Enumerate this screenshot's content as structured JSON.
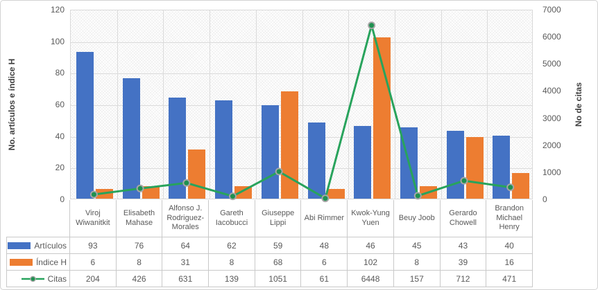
{
  "chart_data": {
    "type": "combo-bar-line",
    "title": "",
    "categories": [
      "Viroj Wiwanitkit",
      "Elisabeth Mahase",
      "Alfonso J. Rodriguez-Morales",
      "Gareth Iacobucci",
      "Giuseppe Lippi",
      "Abi Rimmer",
      "Kwok-Yung Yuen",
      "Beuy Joob",
      "Gerardo Chowell",
      "Brandon Michael Henry"
    ],
    "series": [
      {
        "name": "Artículos",
        "type": "bar",
        "axis": "left",
        "color": "#4472C4",
        "values": [
          93,
          76,
          64,
          62,
          59,
          48,
          46,
          45,
          43,
          40
        ]
      },
      {
        "name": "Índice H",
        "type": "bar",
        "axis": "left",
        "color": "#ED7D31",
        "values": [
          6,
          8,
          31,
          8,
          68,
          6,
          102,
          8,
          39,
          16
        ]
      },
      {
        "name": "Citas",
        "type": "line",
        "axis": "right",
        "color": "#28A35C",
        "values": [
          204,
          426,
          631,
          139,
          1051,
          61,
          6448,
          157,
          712,
          471
        ]
      }
    ],
    "left_axis": {
      "title": "No. artículos e índice H",
      "min": 0,
      "max": 120,
      "step": 20,
      "ticks": [
        120,
        100,
        80,
        60,
        40,
        20,
        0
      ]
    },
    "right_axis": {
      "title": "No de citas",
      "min": 0,
      "max": 7000,
      "step": 1000,
      "ticks": [
        7000,
        6000,
        5000,
        4000,
        3000,
        2000,
        1000,
        0
      ]
    },
    "grid": true,
    "data_table": true,
    "legend_position": "in-table",
    "plot_background": "diagonal-crosshatch",
    "colors": {
      "bar_articulos": "#4472C4",
      "bar_indice_h": "#ED7D31",
      "line_citas": "#28A35C",
      "marker_fill": "#1F9150",
      "marker_ring": "#A6A6A6",
      "gridline": "#DBDBDB",
      "table_border": "#C9C9C9",
      "text": "#595959"
    }
  }
}
